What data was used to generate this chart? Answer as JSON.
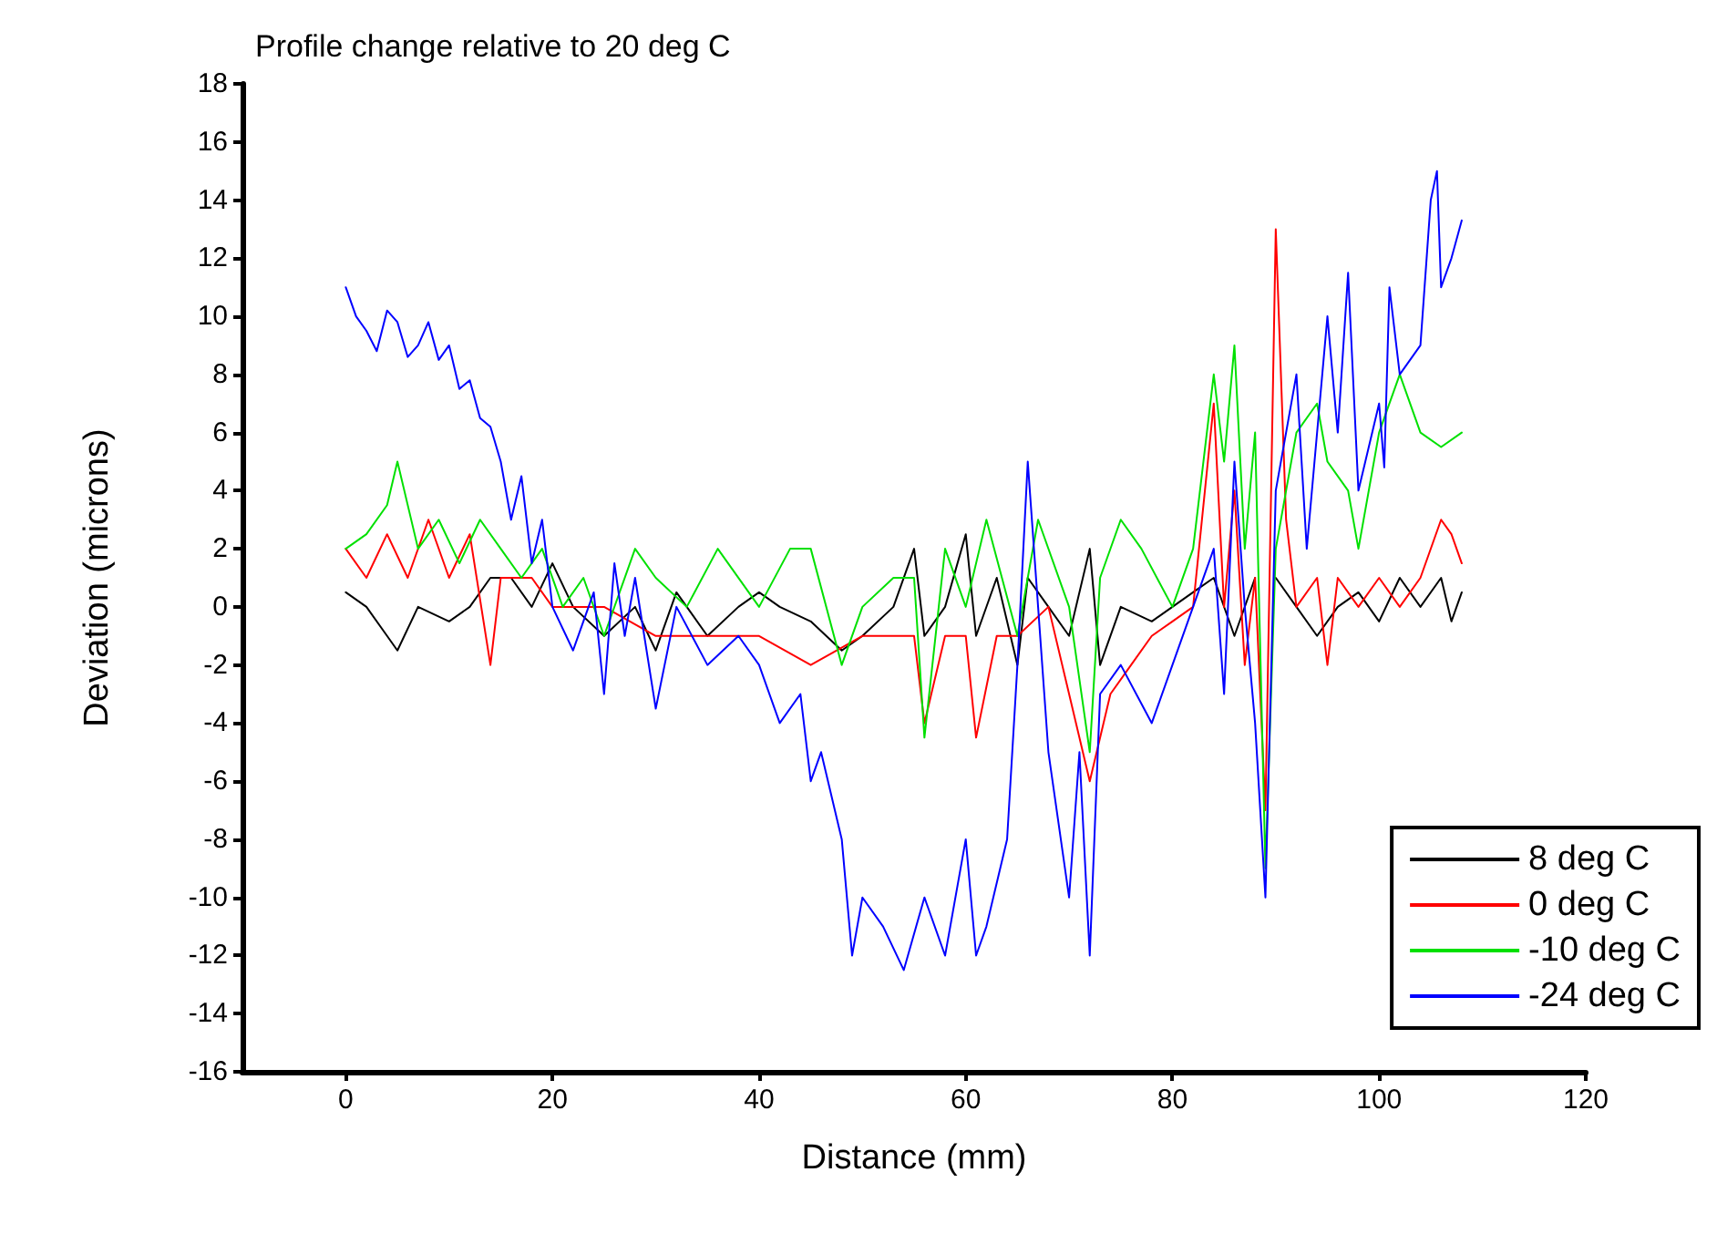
{
  "chart_data": {
    "type": "line",
    "title": "Profile change relative to 20 deg C",
    "xlabel": "Distance (mm)",
    "ylabel": "Deviation (microns)",
    "xlim": [
      -10,
      120
    ],
    "xticks": [
      0,
      20,
      40,
      60,
      80,
      100,
      120
    ],
    "ylim": [
      -16,
      18
    ],
    "yticks": [
      -16,
      -14,
      -12,
      -10,
      -8,
      -6,
      -4,
      -2,
      0,
      2,
      4,
      6,
      8,
      10,
      12,
      14,
      16,
      18
    ],
    "grid": false,
    "legend": "bottom right",
    "marker": "none",
    "line_style": "solid",
    "series": [
      {
        "name": "8 deg C",
        "color": "#000000",
        "x": [
          0,
          2,
          4,
          5,
          7,
          10,
          12,
          14,
          16,
          18,
          20,
          22,
          25,
          28,
          30,
          32,
          35,
          38,
          40,
          42,
          45,
          48,
          50,
          53,
          55,
          56,
          58,
          60,
          61,
          63,
          65,
          66,
          68,
          70,
          72,
          73,
          75,
          78,
          80,
          82,
          84,
          86,
          88,
          89,
          90,
          92,
          94,
          96,
          98,
          100,
          102,
          104,
          106,
          107,
          108
        ],
        "values": [
          0.5,
          0,
          -1,
          -1.5,
          0,
          -0.5,
          0,
          1,
          1,
          0,
          1.5,
          0,
          -1,
          0,
          -1.5,
          0.5,
          -1,
          0,
          0.5,
          0,
          -0.5,
          -1.5,
          -1,
          0,
          2,
          -1,
          0,
          2.5,
          -1,
          1,
          -2,
          1,
          0,
          -1,
          2,
          -2,
          0,
          -0.5,
          0,
          0.5,
          1,
          -1,
          1,
          null,
          1,
          0,
          -1,
          0,
          0.5,
          -0.5,
          1,
          0,
          1,
          -0.5,
          0.5
        ]
      },
      {
        "name": "0 deg C",
        "color": "#ff0000",
        "x": [
          0,
          2,
          4,
          6,
          8,
          10,
          12,
          14,
          15,
          18,
          20,
          25,
          30,
          35,
          40,
          45,
          50,
          55,
          56,
          58,
          60,
          61,
          63,
          65,
          68,
          70,
          72,
          74,
          76,
          78,
          80,
          82,
          84,
          85,
          86,
          87,
          88,
          89,
          90,
          91,
          92,
          94,
          95,
          96,
          98,
          100,
          102,
          104,
          106,
          107,
          108
        ],
        "values": [
          2,
          1,
          2.5,
          1,
          3,
          1,
          2.5,
          -2,
          1,
          1,
          0,
          0,
          -1,
          -1,
          -1,
          -2,
          -1,
          -1,
          -4,
          -1,
          -1,
          -4.5,
          -1,
          -1,
          0,
          -3,
          -6,
          -3,
          -2,
          -1,
          -0.5,
          0,
          7,
          0,
          4,
          -2,
          1,
          -7,
          13,
          3,
          0,
          1,
          -2,
          1,
          0,
          1,
          0,
          1,
          3,
          2.5,
          1.5
        ]
      },
      {
        "name": "-10 deg C",
        "color": "#00e000",
        "x": [
          0,
          2,
          4,
          5,
          7,
          9,
          11,
          13,
          15,
          17,
          19,
          21,
          23,
          25,
          28,
          30,
          33,
          36,
          40,
          43,
          45,
          48,
          50,
          53,
          55,
          56,
          58,
          60,
          62,
          65,
          67,
          70,
          72,
          73,
          75,
          77,
          80,
          82,
          84,
          85,
          86,
          87,
          88,
          89,
          90,
          91,
          92,
          94,
          95,
          97,
          98,
          100,
          101,
          102,
          104,
          106,
          108
        ],
        "values": [
          2,
          2.5,
          3.5,
          5,
          2,
          3,
          1.5,
          3,
          2,
          1,
          2,
          0,
          1,
          -1,
          2,
          1,
          0,
          2,
          0,
          2,
          2,
          -2,
          0,
          1,
          1,
          -4.5,
          2,
          0,
          3,
          -1,
          3,
          0,
          -5,
          1,
          3,
          2,
          0,
          2,
          8,
          5,
          9,
          2,
          6,
          -9,
          2,
          4,
          6,
          7,
          5,
          4,
          2,
          6,
          7,
          8,
          6,
          5.5,
          6
        ]
      },
      {
        "name": "-24 deg C",
        "color": "#0000ff",
        "x": [
          0,
          1,
          2,
          3,
          4,
          5,
          6,
          7,
          8,
          9,
          10,
          11,
          12,
          13,
          14,
          15,
          16,
          17,
          18,
          19,
          20,
          22,
          24,
          25,
          26,
          27,
          28,
          30,
          32,
          35,
          38,
          40,
          42,
          44,
          45,
          46,
          48,
          49,
          50,
          52,
          54,
          56,
          58,
          60,
          61,
          62,
          64,
          65,
          66,
          67,
          68,
          70,
          71,
          72,
          73,
          75,
          78,
          80,
          82,
          84,
          85,
          86,
          87,
          88,
          89,
          90,
          92,
          93,
          95,
          96,
          97,
          98,
          100,
          100.5,
          101,
          102,
          104,
          105,
          105.6,
          106,
          107,
          108
        ],
        "values": [
          11,
          10,
          9.5,
          8.8,
          10.2,
          9.8,
          8.6,
          9,
          9.8,
          8.5,
          9,
          7.5,
          7.8,
          6.5,
          6.2,
          5,
          3,
          4.5,
          1.5,
          3,
          0,
          -1.5,
          0.5,
          -3,
          1.5,
          -1,
          1,
          -3.5,
          0,
          -2,
          -1,
          -2,
          -4,
          -3,
          -6,
          -5,
          -8,
          -12,
          -10,
          -11,
          -12.5,
          -10,
          -12,
          -8,
          -12,
          -11,
          -8,
          -2,
          5,
          0,
          -5,
          -10,
          -5,
          -12,
          -3,
          -2,
          -4,
          -2,
          0,
          2,
          -3,
          5,
          0,
          -4,
          -10,
          4,
          8,
          2,
          10,
          6,
          11.5,
          4,
          7,
          4.8,
          11,
          8,
          9,
          14,
          15,
          11,
          12,
          13.3
        ]
      }
    ]
  }
}
